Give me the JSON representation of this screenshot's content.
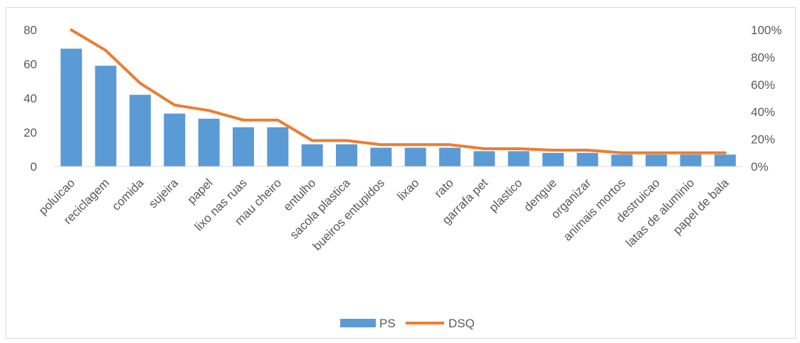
{
  "chart_data": {
    "type": "bar",
    "categories": [
      "poluicao",
      "reciclagem",
      "comida",
      "sujeira",
      "papel",
      "lixo nas ruas",
      "mau cheiro",
      "entulho",
      "sacola plastica",
      "bueiros entupidos",
      "lixao",
      "rato",
      "garrafa pet",
      "plastico",
      "dengue",
      "organizar",
      "animais mortos",
      "destruicao",
      "latas de aluminio",
      "papel de bala"
    ],
    "series": [
      {
        "name": "PS",
        "type": "bar",
        "axis": "left",
        "color": "#5b9bd5",
        "values": [
          69,
          59,
          42,
          31,
          28,
          23,
          23,
          13,
          13,
          11,
          11,
          11,
          9,
          9,
          8,
          8,
          7,
          7,
          7,
          7
        ]
      },
      {
        "name": "DSQ",
        "type": "line",
        "axis": "right",
        "color": "#ed7d31",
        "values": [
          100,
          85,
          61,
          45,
          41,
          34,
          34,
          19,
          19,
          16,
          16,
          16,
          13,
          13,
          12,
          12,
          10,
          10,
          10,
          10
        ]
      }
    ],
    "y_left": {
      "min": 0,
      "max": 80,
      "ticks": [
        "0",
        "20",
        "40",
        "60",
        "80"
      ]
    },
    "y_right": {
      "min": 0,
      "max": 100,
      "ticks": [
        "0%",
        "20%",
        "40%",
        "60%",
        "80%",
        "100%"
      ]
    },
    "grid": false,
    "legend_position": "bottom"
  }
}
